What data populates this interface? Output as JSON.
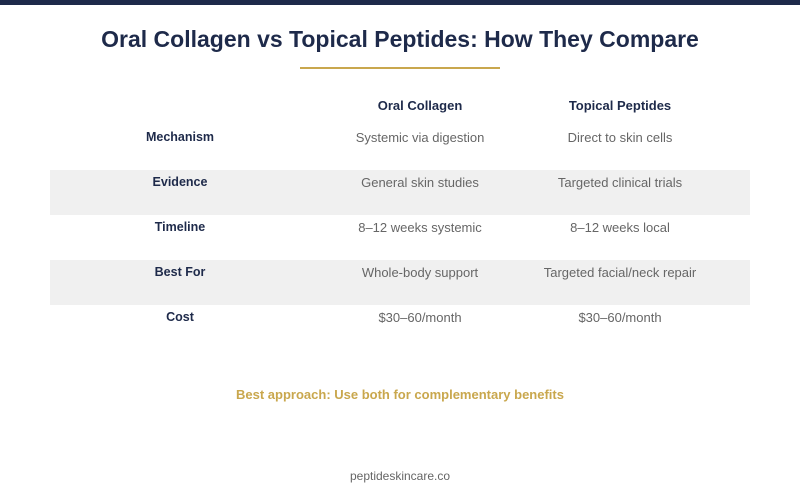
{
  "colors": {
    "navy": "#1e2a4a",
    "gold": "#c9a74d",
    "row_shade": "#f0f0f0",
    "value_text": "#666666"
  },
  "title": "Oral Collagen vs Topical Peptides: How They Compare",
  "table": {
    "columns": [
      "Oral Collagen",
      "Topical Peptides"
    ],
    "rows": [
      {
        "label": "Mechanism",
        "values": [
          "Systemic via digestion",
          "Direct to skin cells"
        ]
      },
      {
        "label": "Evidence",
        "values": [
          "General skin studies",
          "Targeted clinical trials"
        ]
      },
      {
        "label": "Timeline",
        "values": [
          "8–12 weeks systemic",
          "8–12 weeks local"
        ]
      },
      {
        "label": "Best For",
        "values": [
          "Whole-body support",
          "Targeted facial/neck repair"
        ]
      },
      {
        "label": "Cost",
        "values": [
          "$30–60/month",
          "$30–60/month"
        ]
      }
    ]
  },
  "footer_note": "Best approach: Use both for complementary benefits",
  "site": "peptideskincare.co"
}
